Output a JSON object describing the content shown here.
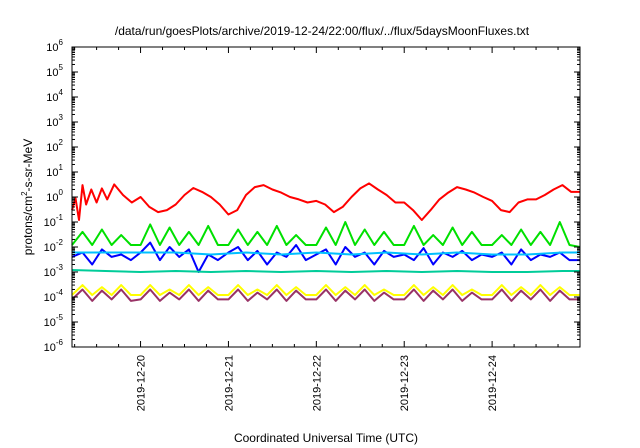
{
  "chart_data": {
    "type": "line",
    "title": "/data/run/goesPlots/archive/2019-12-24/22:00/flux/../flux/5daysMoonFluxes.txt",
    "xlabel": "Coordinated Universal Time (UTC)",
    "ylabel": "protons/cm²-s-sr-MeV",
    "ylabel_parts": {
      "pre": "protons/cm",
      "sup": "2",
      "post": "-s-sr-MeV"
    },
    "yscale": "log",
    "ylim_exponents": [
      -6,
      6
    ],
    "y_tick_labels": [
      {
        "base": "10",
        "exp": "-6"
      },
      {
        "base": "10",
        "exp": "-5"
      },
      {
        "base": "10",
        "exp": "-4"
      },
      {
        "base": "10",
        "exp": "-3"
      },
      {
        "base": "10",
        "exp": "-2"
      },
      {
        "base": "10",
        "exp": "-1"
      },
      {
        "base": "10",
        "exp": "0"
      },
      {
        "base": "10",
        "exp": "1"
      },
      {
        "base": "10",
        "exp": "2"
      },
      {
        "base": "10",
        "exp": "3"
      },
      {
        "base": "10",
        "exp": "4"
      },
      {
        "base": "10",
        "exp": "5"
      },
      {
        "base": "10",
        "exp": "6"
      }
    ],
    "xlim_days": [
      -0.78,
      5.0
    ],
    "x_tick_labels": [
      "2019-12-20",
      "2019-12-21",
      "2019-12-22",
      "2019-12-23",
      "2019-12-24"
    ],
    "x_tick_days": [
      0,
      1,
      2,
      3,
      4
    ],
    "grid": false,
    "legend": "none",
    "series": [
      {
        "color": "#ff0000",
        "x": [
          -0.78,
          -0.74,
          -0.7,
          -0.66,
          -0.62,
          -0.56,
          -0.5,
          -0.44,
          -0.38,
          -0.3,
          -0.2,
          -0.1,
          0.0,
          0.1,
          0.2,
          0.3,
          0.4,
          0.5,
          0.6,
          0.7,
          0.8,
          0.9,
          1.0,
          1.1,
          1.2,
          1.3,
          1.4,
          1.5,
          1.6,
          1.7,
          1.8,
          1.9,
          2.0,
          2.1,
          2.2,
          2.3,
          2.4,
          2.5,
          2.6,
          2.7,
          2.8,
          2.9,
          3.0,
          3.1,
          3.2,
          3.3,
          3.4,
          3.5,
          3.6,
          3.7,
          3.8,
          3.9,
          4.0,
          4.1,
          4.2,
          4.3,
          4.4,
          4.5,
          4.6,
          4.7,
          4.8,
          4.9,
          5.0
        ],
        "y": [
          0.3,
          0.9,
          0.12,
          3.0,
          0.5,
          2.0,
          0.6,
          2.2,
          0.8,
          3.2,
          1.2,
          0.6,
          1.0,
          0.4,
          0.25,
          0.3,
          0.5,
          1.2,
          2.3,
          1.6,
          1.0,
          0.5,
          0.2,
          0.3,
          1.2,
          2.5,
          3.0,
          2.0,
          1.5,
          1.0,
          0.8,
          0.6,
          0.7,
          0.5,
          0.25,
          0.4,
          1.0,
          2.2,
          3.5,
          2.0,
          1.2,
          0.6,
          0.6,
          0.3,
          0.12,
          0.3,
          0.8,
          1.5,
          2.5,
          2.0,
          1.5,
          1.0,
          0.7,
          0.3,
          0.25,
          0.6,
          0.8,
          0.8,
          1.2,
          2.0,
          3.0,
          1.6,
          1.6
        ]
      },
      {
        "color": "#00e000",
        "x": [
          -0.78,
          -0.66,
          -0.55,
          -0.44,
          -0.33,
          -0.22,
          -0.11,
          0.0,
          0.11,
          0.22,
          0.33,
          0.44,
          0.55,
          0.66,
          0.77,
          0.88,
          1.0,
          1.11,
          1.22,
          1.33,
          1.44,
          1.55,
          1.66,
          1.77,
          1.88,
          2.0,
          2.11,
          2.22,
          2.33,
          2.44,
          2.55,
          2.66,
          2.77,
          2.88,
          3.0,
          3.11,
          3.22,
          3.33,
          3.44,
          3.55,
          3.66,
          3.77,
          3.88,
          4.0,
          4.11,
          4.22,
          4.33,
          4.44,
          4.55,
          4.66,
          4.77,
          4.88,
          5.0
        ],
        "y": [
          0.012,
          0.04,
          0.012,
          0.05,
          0.012,
          0.03,
          0.012,
          0.012,
          0.08,
          0.012,
          0.06,
          0.012,
          0.04,
          0.012,
          0.07,
          0.012,
          0.012,
          0.05,
          0.012,
          0.04,
          0.012,
          0.07,
          0.012,
          0.03,
          0.012,
          0.012,
          0.06,
          0.012,
          0.1,
          0.012,
          0.05,
          0.012,
          0.04,
          0.012,
          0.012,
          0.07,
          0.012,
          0.03,
          0.012,
          0.06,
          0.012,
          0.04,
          0.012,
          0.012,
          0.03,
          0.012,
          0.05,
          0.012,
          0.04,
          0.012,
          0.1,
          0.012,
          0.01
        ]
      },
      {
        "color": "#0000ff",
        "x": [
          -0.78,
          -0.66,
          -0.55,
          -0.44,
          -0.33,
          -0.22,
          -0.11,
          0.0,
          0.11,
          0.22,
          0.33,
          0.44,
          0.55,
          0.66,
          0.77,
          0.88,
          1.0,
          1.11,
          1.22,
          1.33,
          1.44,
          1.55,
          1.66,
          1.77,
          1.88,
          2.0,
          2.11,
          2.22,
          2.33,
          2.44,
          2.55,
          2.66,
          2.77,
          2.88,
          3.0,
          3.11,
          3.22,
          3.33,
          3.44,
          3.55,
          3.66,
          3.77,
          3.88,
          4.0,
          4.11,
          4.22,
          4.33,
          4.44,
          4.55,
          4.66,
          4.77,
          4.88,
          5.0
        ],
        "y": [
          0.004,
          0.006,
          0.002,
          0.008,
          0.004,
          0.005,
          0.003,
          0.006,
          0.015,
          0.003,
          0.01,
          0.004,
          0.008,
          0.001,
          0.005,
          0.003,
          0.006,
          0.01,
          0.003,
          0.007,
          0.002,
          0.006,
          0.004,
          0.012,
          0.003,
          0.005,
          0.008,
          0.002,
          0.01,
          0.004,
          0.006,
          0.002,
          0.007,
          0.004,
          0.005,
          0.003,
          0.009,
          0.002,
          0.006,
          0.004,
          0.007,
          0.003,
          0.005,
          0.004,
          0.006,
          0.002,
          0.008,
          0.003,
          0.005,
          0.004,
          0.006,
          0.003,
          0.003
        ]
      },
      {
        "color": "#00c0ff",
        "x": [
          -0.78,
          -0.4,
          0.0,
          0.4,
          0.8,
          1.2,
          1.6,
          2.0,
          2.4,
          2.8,
          3.2,
          3.6,
          4.0,
          4.4,
          4.8,
          5.0
        ],
        "y": [
          0.006,
          0.006,
          0.006,
          0.006,
          0.005,
          0.006,
          0.005,
          0.006,
          0.005,
          0.006,
          0.005,
          0.006,
          0.005,
          0.005,
          0.006,
          0.006
        ]
      },
      {
        "color": "#00cc99",
        "x": [
          -0.78,
          -0.4,
          0.0,
          0.4,
          0.8,
          1.2,
          1.6,
          2.0,
          2.4,
          2.8,
          3.2,
          3.6,
          4.0,
          4.4,
          4.8,
          5.0
        ],
        "y": [
          0.0012,
          0.0011,
          0.001,
          0.0011,
          0.001,
          0.0011,
          0.001,
          0.0011,
          0.001,
          0.0011,
          0.001,
          0.0011,
          0.001,
          0.001,
          0.0011,
          0.0011
        ]
      },
      {
        "color": "#ffff00",
        "x": [
          -0.78,
          -0.66,
          -0.55,
          -0.44,
          -0.33,
          -0.22,
          -0.11,
          0.0,
          0.11,
          0.22,
          0.33,
          0.44,
          0.55,
          0.66,
          0.77,
          0.88,
          1.0,
          1.11,
          1.22,
          1.33,
          1.44,
          1.55,
          1.66,
          1.77,
          1.88,
          2.0,
          2.11,
          2.22,
          2.33,
          2.44,
          2.55,
          2.66,
          2.77,
          2.88,
          3.0,
          3.11,
          3.22,
          3.33,
          3.44,
          3.55,
          3.66,
          3.77,
          3.88,
          4.0,
          4.11,
          4.22,
          4.33,
          4.44,
          4.55,
          4.66,
          4.77,
          4.88,
          5.0
        ],
        "y": [
          0.00012,
          0.0003,
          0.00012,
          0.00025,
          0.00012,
          0.0003,
          0.00012,
          0.00012,
          0.0003,
          0.00012,
          0.0002,
          0.00012,
          0.0003,
          0.00012,
          0.00025,
          0.00012,
          0.00012,
          0.0003,
          0.00012,
          0.0002,
          0.00012,
          0.0003,
          0.00012,
          0.00025,
          0.00012,
          0.00012,
          0.0003,
          0.00012,
          0.00025,
          0.00012,
          0.0003,
          0.00012,
          0.0002,
          0.00012,
          0.00012,
          0.0003,
          0.00012,
          0.00025,
          0.00012,
          0.0003,
          0.00012,
          0.0002,
          0.00012,
          0.00012,
          0.0003,
          0.00012,
          0.00025,
          0.00012,
          0.0003,
          0.00012,
          0.00025,
          0.00012,
          0.00012
        ]
      },
      {
        "color": "#993366",
        "x": [
          -0.78,
          -0.66,
          -0.55,
          -0.44,
          -0.33,
          -0.22,
          -0.11,
          0.0,
          0.11,
          0.22,
          0.33,
          0.44,
          0.55,
          0.66,
          0.77,
          0.88,
          1.0,
          1.11,
          1.22,
          1.33,
          1.44,
          1.55,
          1.66,
          1.77,
          1.88,
          2.0,
          2.11,
          2.22,
          2.33,
          2.44,
          2.55,
          2.66,
          2.77,
          2.88,
          3.0,
          3.11,
          3.22,
          3.33,
          3.44,
          3.55,
          3.66,
          3.77,
          3.88,
          4.0,
          4.11,
          4.22,
          4.33,
          4.44,
          4.55,
          4.66,
          4.77,
          4.88,
          5.0
        ],
        "y": [
          8e-05,
          0.0002,
          7e-05,
          0.00018,
          8e-05,
          0.0002,
          7e-05,
          8e-05,
          0.0002,
          7e-05,
          0.00015,
          8e-05,
          0.0002,
          7e-05,
          0.00018,
          8e-05,
          8e-05,
          0.0002,
          7e-05,
          0.00015,
          8e-05,
          0.0002,
          7e-05,
          0.00018,
          8e-05,
          8e-05,
          0.0002,
          7e-05,
          0.00018,
          8e-05,
          0.0002,
          7e-05,
          0.00015,
          8e-05,
          8e-05,
          0.0002,
          7e-05,
          0.00018,
          8e-05,
          0.0002,
          7e-05,
          0.00015,
          8e-05,
          8e-05,
          0.0002,
          7e-05,
          0.00018,
          8e-05,
          0.0002,
          7e-05,
          0.00018,
          8e-05,
          8e-05
        ]
      }
    ]
  }
}
